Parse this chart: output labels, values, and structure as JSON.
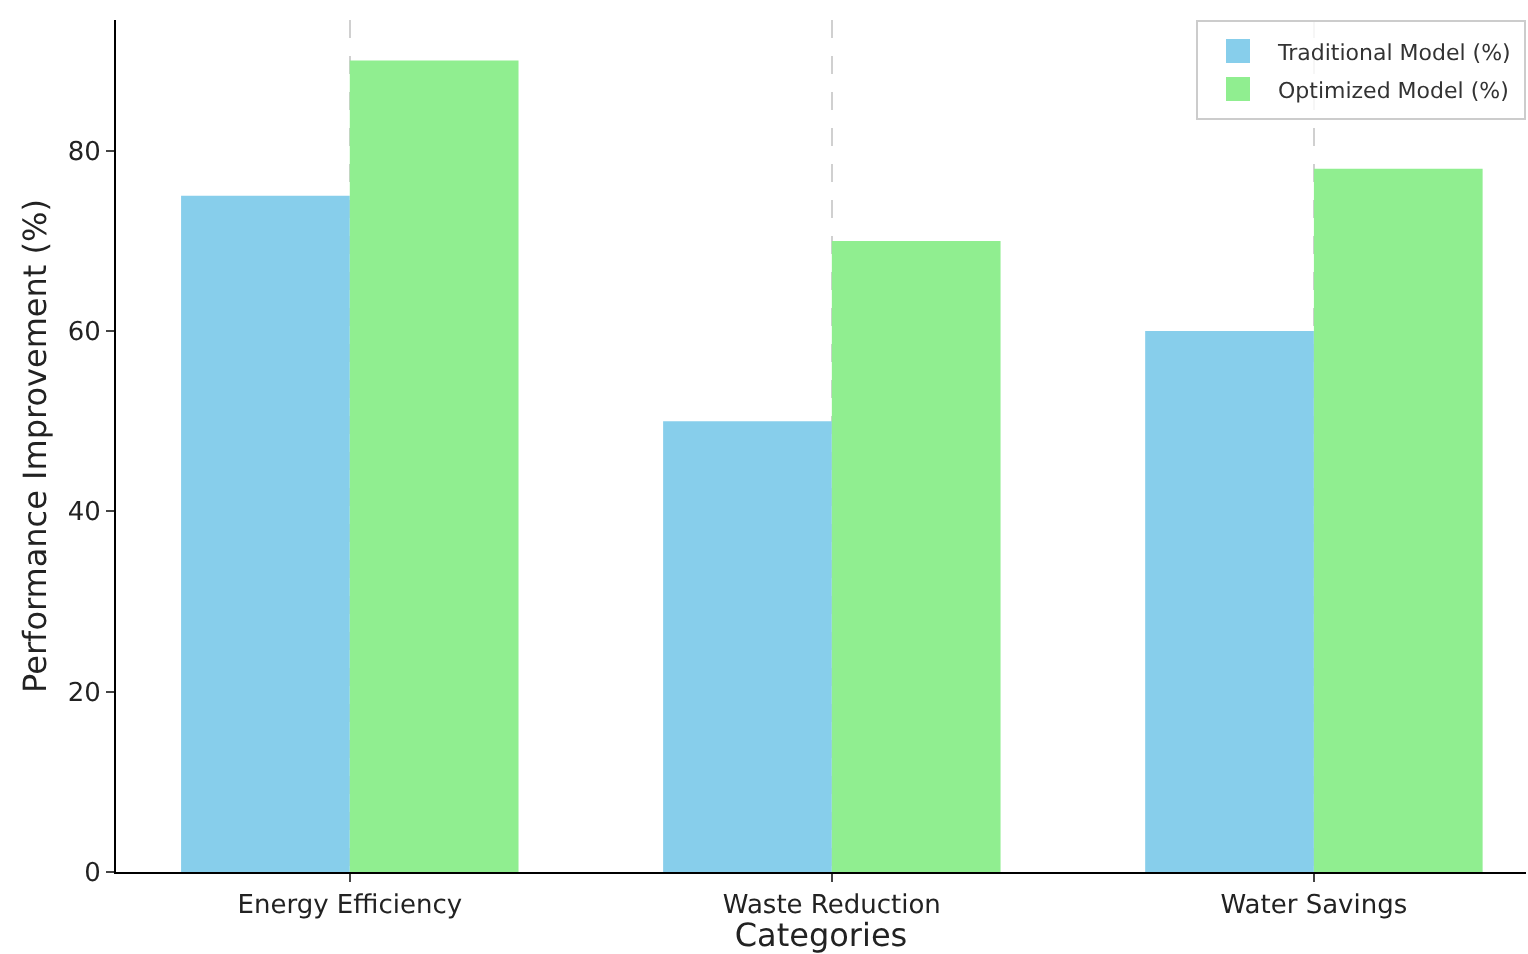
{
  "chart_data": {
    "type": "bar",
    "xlabel": "Categories",
    "ylabel": "Performance Improvement (%)",
    "categories": [
      "Energy Efficiency",
      "Waste Reduction",
      "Water Savings"
    ],
    "series": [
      {
        "name": "Traditional Model (%)",
        "color": "#87ceeb",
        "values": [
          75,
          50,
          60
        ]
      },
      {
        "name": "Optimized Model (%)",
        "color": "#90ee90",
        "values": [
          90,
          70,
          78
        ]
      }
    ],
    "ylim": [
      0,
      94.5
    ],
    "yticks": [
      0,
      20,
      40,
      60,
      80
    ],
    "grid": "x",
    "legend": "top right"
  }
}
